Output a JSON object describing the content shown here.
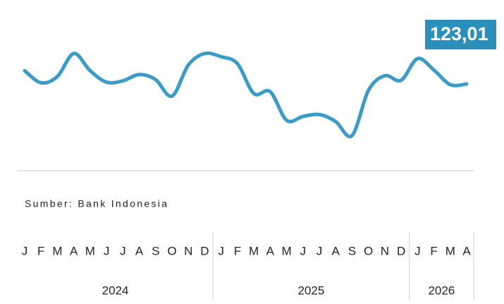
{
  "chart_data": {
    "type": "line",
    "source": "Sumber: Bank Indonesia",
    "categories": [
      "J",
      "F",
      "M",
      "A",
      "M",
      "J",
      "J",
      "A",
      "S",
      "O",
      "N",
      "D",
      "J",
      "F",
      "M",
      "A",
      "M",
      "J",
      "J",
      "A",
      "S",
      "O",
      "N",
      "D",
      "J",
      "F",
      "M",
      "A"
    ],
    "years": [
      "2024",
      "2025",
      "2026"
    ],
    "series": [
      {
        "color": "#3a9cc6",
        "values": [
          125.1,
          123.2,
          124.2,
          127.8,
          125.1,
          123.3,
          123.5,
          124.5,
          123.7,
          121.1,
          126.0,
          127.8,
          127.3,
          126.2,
          121.5,
          121.8,
          117.3,
          117.9,
          118.2,
          117.1,
          114.9,
          122.0,
          124.3,
          123.6,
          127.0,
          125.2,
          122.9,
          123.01
        ],
        "value_labels": [
          null,
          null,
          null,
          null,
          null,
          null,
          null,
          null,
          null,
          null,
          null,
          null,
          null,
          null,
          null,
          null,
          null,
          null,
          null,
          null,
          null,
          null,
          null,
          null,
          null,
          null,
          null,
          "123,01"
        ]
      }
    ],
    "ylim": [
      110.7,
      134
    ],
    "label_color": "#2b8fbb"
  }
}
